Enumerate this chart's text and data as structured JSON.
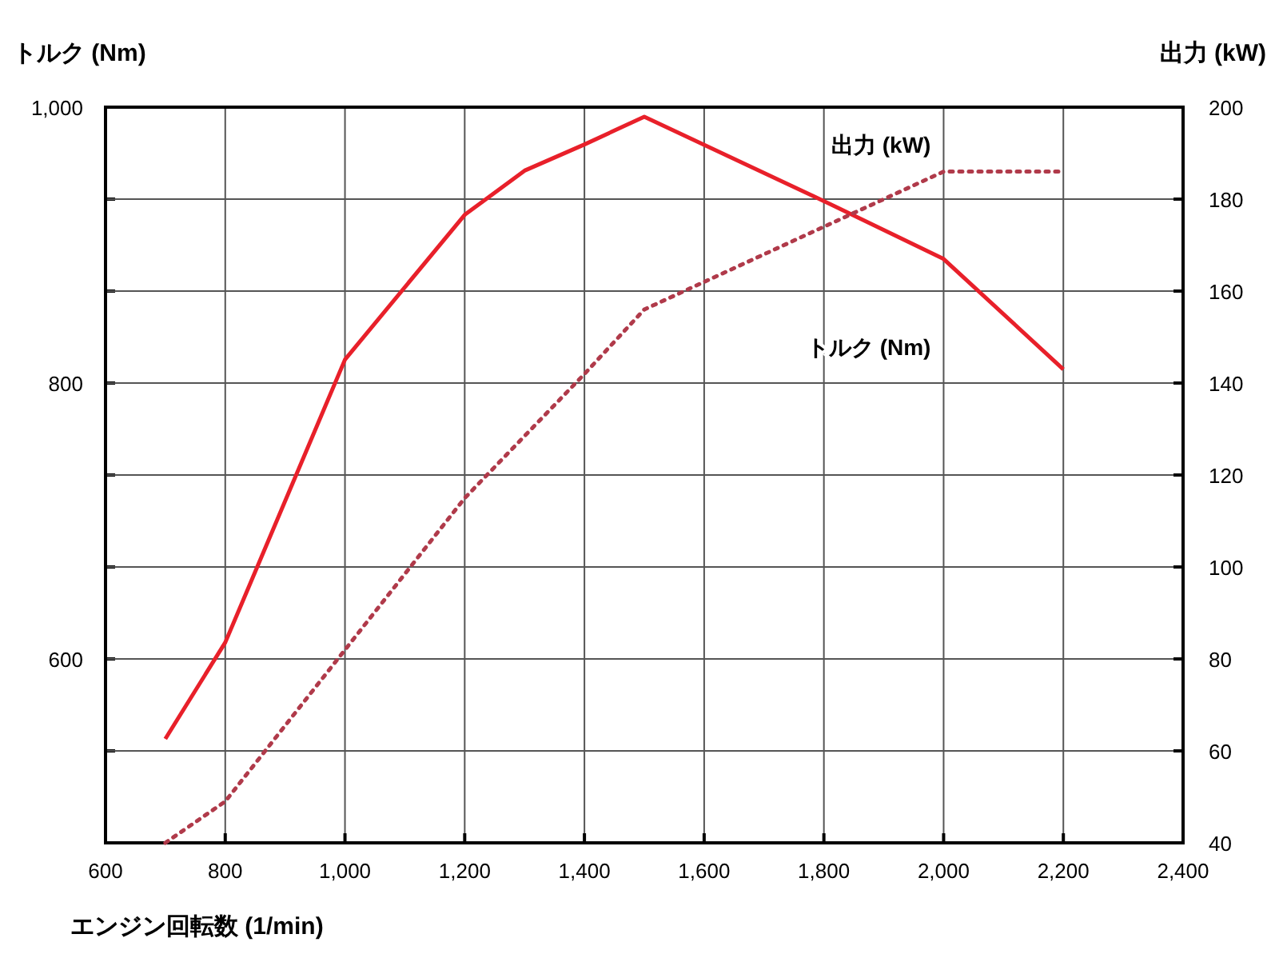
{
  "chart_data": {
    "type": "line",
    "xlabel": "エンジン回転数 (1/min)",
    "ylabel": "トルク (Nm)",
    "y2label": "出力 (kW)",
    "xlim": [
      600,
      2400
    ],
    "xticks": [
      600,
      800,
      {
        "value": 1000,
        "label": "1,000"
      },
      {
        "value": 1200,
        "label": "1,200"
      },
      {
        "value": 1400,
        "label": "1,400"
      },
      {
        "value": 1600,
        "label": "1,600"
      },
      {
        "value": 1800,
        "label": "1,800"
      },
      {
        "value": 2000,
        "label": "2,000"
      },
      {
        "value": 2200,
        "label": "2,200"
      },
      {
        "value": 2400,
        "label": "2,400"
      }
    ],
    "ylim": [
      466.67,
      1000
    ],
    "yticks": [
      {
        "value": 533.33,
        "label": null
      },
      600,
      {
        "value": 666.67,
        "label": null
      },
      {
        "value": 733.33,
        "label": null
      },
      800,
      {
        "value": 866.67,
        "label": null
      },
      {
        "value": 933.33,
        "label": null
      },
      {
        "value": 1000,
        "label": "1,000"
      }
    ],
    "y2lim": [
      40,
      200
    ],
    "y2ticks": [
      40,
      60,
      80,
      100,
      120,
      140,
      160,
      180,
      200
    ],
    "grid": true,
    "series": [
      {
        "name": "トルク (Nm)",
        "color": "#e8202a",
        "line_style": "solid",
        "x": [
          700,
          800,
          1000,
          1200,
          1300,
          1400,
          1500,
          1800,
          2000,
          2200
        ],
        "values": [
          542,
          612,
          817,
          922,
          954,
          973,
          993,
          932,
          890,
          810
        ]
      },
      {
        "name": "出力 (kW)",
        "color": "#b03a4a",
        "line_style": "dotted",
        "axis": "y2",
        "x": [
          700,
          800,
          1000,
          1200,
          1400,
          1500,
          2000,
          2200
        ],
        "values": [
          40,
          49,
          82,
          115,
          142,
          156,
          186,
          186
        ]
      }
    ]
  }
}
